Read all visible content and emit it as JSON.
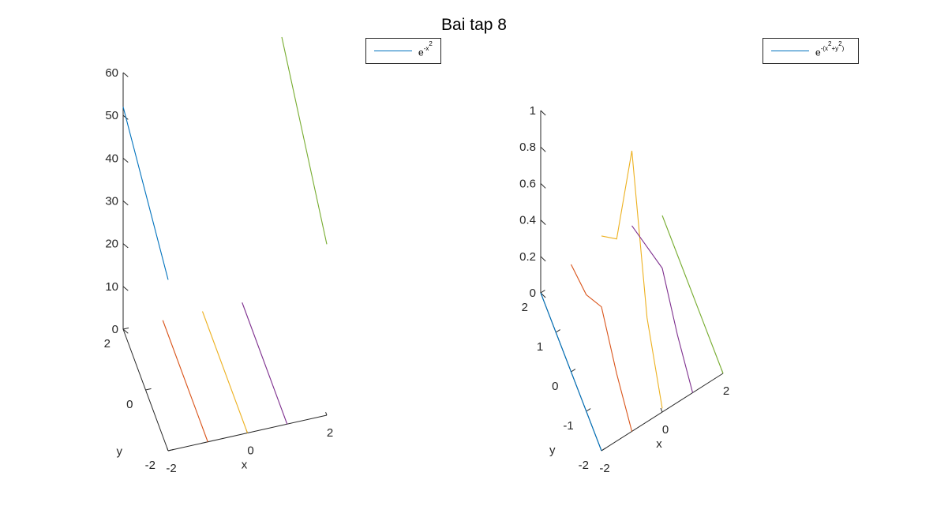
{
  "figure": {
    "title": "Bai tap 8"
  },
  "chart_data": [
    {
      "type": "line",
      "projection": "3d",
      "legend": {
        "label_base": "e",
        "label_exp": "-x",
        "label_exp2": "2",
        "placement": "top-right",
        "color": "#0072bd"
      },
      "xlabel": "x",
      "ylabel": "y",
      "zlabel": "",
      "xticks": [
        "-2",
        "0",
        "2"
      ],
      "yticks": [
        "-2",
        "0",
        "2"
      ],
      "zticks": [
        "0",
        "10",
        "20",
        "30",
        "40",
        "50",
        "60"
      ],
      "xlim": [
        -2,
        2
      ],
      "ylim": [
        -2,
        2
      ],
      "zlim": [
        0,
        60
      ],
      "grid": false,
      "series": [
        {
          "color": "#0072bd",
          "x": [
            -2,
            -2
          ],
          "y": [
            2,
            -2
          ],
          "z": [
            52,
            40
          ]
        },
        {
          "color": "#d95319",
          "x": [
            -1,
            -1
          ],
          "y": [
            2,
            -2
          ],
          "z": [
            0,
            0
          ]
        },
        {
          "color": "#edb120",
          "x": [
            0,
            0
          ],
          "y": [
            2,
            -2
          ],
          "z": [
            0,
            0
          ]
        },
        {
          "color": "#7e2f8e",
          "x": [
            1,
            1
          ],
          "y": [
            2,
            -2
          ],
          "z": [
            0,
            0
          ]
        },
        {
          "color": "#77ac30",
          "x": [
            2,
            2
          ],
          "y": [
            2,
            -2
          ],
          "z": [
            60,
            40
          ]
        }
      ]
    },
    {
      "type": "line",
      "projection": "3d",
      "legend": {
        "label_base": "e",
        "label_exp_open": "-(x",
        "label_exp_sq1": "2",
        "label_exp_mid": "+y",
        "label_exp_sq2": "2",
        "label_exp_close": ")",
        "placement": "top-right",
        "color": "#0072bd"
      },
      "xlabel": "x",
      "ylabel": "y",
      "zlabel": "",
      "xticks": [
        "-2",
        "0",
        "2"
      ],
      "yticks": [
        "-2",
        "-1",
        "0",
        "1",
        "2"
      ],
      "zticks": [
        "0",
        "0.2",
        "0.4",
        "0.6",
        "0.8",
        "1"
      ],
      "xlim": [
        -2,
        2
      ],
      "ylim": [
        -2,
        2
      ],
      "zlim": [
        0,
        1
      ],
      "grid": false,
      "series": [
        {
          "color": "#0072bd",
          "x": [
            -2,
            -2,
            -2,
            -2,
            -2
          ],
          "y": [
            2,
            1,
            0,
            -1,
            -2
          ],
          "z": [
            0,
            0,
            0,
            0,
            0
          ]
        },
        {
          "color": "#d95319",
          "x": [
            -1,
            -1,
            -1,
            -1,
            -1
          ],
          "y": [
            2,
            1,
            0,
            -1,
            -2
          ],
          "z": [
            0.05,
            0.1,
            0.25,
            0.1,
            0
          ]
        },
        {
          "color": "#edb120",
          "x": [
            0,
            0,
            0,
            0,
            0
          ],
          "y": [
            2,
            1,
            0,
            -1,
            -2
          ],
          "z": [
            0.1,
            0.3,
            1.0,
            0.3,
            0.02
          ]
        },
        {
          "color": "#7e2f8e",
          "x": [
            1,
            1,
            1,
            1,
            1
          ],
          "y": [
            2,
            1,
            0,
            -1,
            -2
          ],
          "z": [
            0.05,
            0.15,
            0.25,
            0.1,
            0
          ]
        },
        {
          "color": "#77ac30",
          "x": [
            2,
            2,
            2,
            2,
            2
          ],
          "y": [
            2,
            1,
            0,
            -1,
            -2
          ],
          "z": [
            0,
            0,
            0,
            0,
            0
          ]
        }
      ]
    }
  ]
}
